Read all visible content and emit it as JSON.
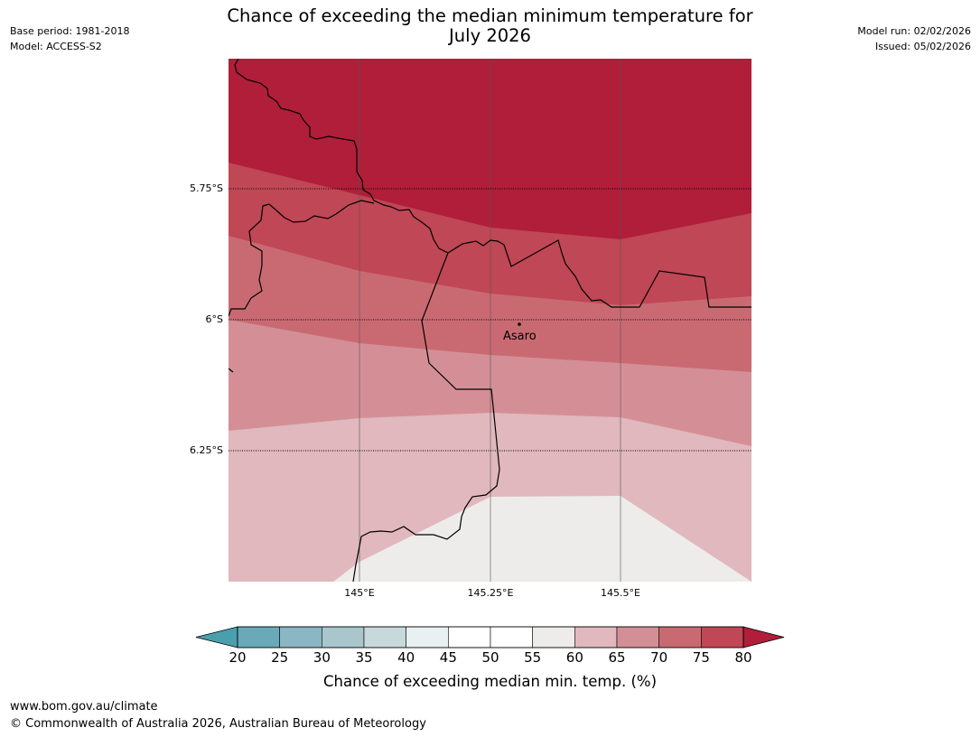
{
  "title_line1": "Chance of exceeding the median minimum temperature for",
  "title_line2": "July 2026",
  "meta": {
    "base_period": "Base period: 1981-2018",
    "model": "Model: ACCESS-S2",
    "model_run": "Model run: 02/02/2026",
    "issued": "Issued: 05/02/2026"
  },
  "map": {
    "latitude_labels": [
      "5.75°S",
      "6°S",
      "6.25°S"
    ],
    "longitude_labels": [
      "145°E",
      "145.25°E",
      "145.5°E"
    ],
    "place": {
      "name": "Asaro",
      "lon": 145.3,
      "lat": -6.01
    }
  },
  "colorbar": {
    "ticks": [
      "20",
      "25",
      "30",
      "35",
      "40",
      "45",
      "50",
      "55",
      "60",
      "65",
      "70",
      "75",
      "80"
    ],
    "colors": {
      "below": "#4a9faf",
      "bins": [
        "#6aaab8",
        "#8ab7c3",
        "#a8c6cc",
        "#c8d9dc",
        "#e9f0f2",
        "#ffffff",
        "#ffffff",
        "#eeecea",
        "#e0b8bd",
        "#d48f96",
        "#c96a73",
        "#c04755"
      ],
      "above": "#b01e3a"
    },
    "label": "Chance of exceeding median min. temp. (%)"
  },
  "footer": {
    "url": "www.bom.gov.au/climate",
    "copyright": "© Commonwealth of Australia 2026, Australian Bureau of Meteorology"
  }
}
